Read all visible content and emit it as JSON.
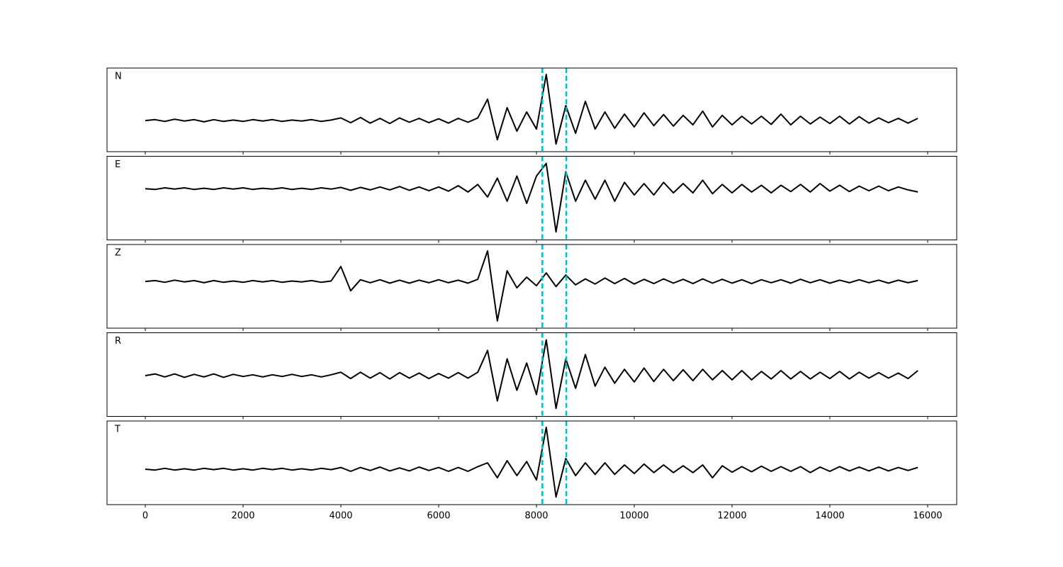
{
  "chart_data": [
    {
      "type": "line",
      "label": "N",
      "color": "#000000",
      "vlines": [
        8120,
        8610
      ],
      "vline_color": "#00bfbf",
      "xlim": [
        -783,
        16594
      ],
      "ylim": [
        -0.73,
        1.23
      ],
      "xticks": [
        0,
        2000,
        4000,
        6000,
        8000,
        10000,
        12000,
        14000,
        16000
      ],
      "show_tick_labels": false,
      "x": [
        0,
        200,
        400,
        600,
        800,
        1000,
        1200,
        1400,
        1600,
        1800,
        2000,
        2200,
        2400,
        2600,
        2800,
        3000,
        3200,
        3400,
        3600,
        3800,
        4000,
        4200,
        4400,
        4600,
        4800,
        5000,
        5200,
        5400,
        5600,
        5800,
        6000,
        6200,
        6400,
        6600,
        6800,
        7000,
        7200,
        7400,
        7600,
        7800,
        8000,
        8200,
        8400,
        8600,
        8800,
        9000,
        9200,
        9400,
        9600,
        9800,
        10000,
        10200,
        10400,
        10600,
        10800,
        11000,
        11200,
        11400,
        11600,
        11800,
        12000,
        12200,
        12400,
        12600,
        12800,
        13000,
        13200,
        13400,
        13600,
        13800,
        14000,
        14200,
        14400,
        14600,
        14800,
        15000,
        15200,
        15400,
        15600,
        15800
      ],
      "values": [
        0,
        0.02,
        -0.02,
        0.03,
        -0.01,
        0.02,
        -0.03,
        0.02,
        -0.02,
        0.01,
        -0.02,
        0.02,
        -0.01,
        0.02,
        -0.02,
        0.01,
        -0.01,
        0.02,
        -0.02,
        0.01,
        0.06,
        -0.05,
        0.07,
        -0.06,
        0.05,
        -0.07,
        0.06,
        -0.04,
        0.05,
        -0.05,
        0.04,
        -0.06,
        0.05,
        -0.04,
        0.06,
        0.5,
        -0.45,
        0.3,
        -0.25,
        0.2,
        -0.2,
        1.08,
        -0.55,
        0.35,
        -0.3,
        0.45,
        -0.2,
        0.2,
        -0.18,
        0.15,
        -0.15,
        0.18,
        -0.12,
        0.14,
        -0.13,
        0.12,
        -0.1,
        0.22,
        -0.15,
        0.12,
        -0.1,
        0.1,
        -0.08,
        0.1,
        -0.09,
        0.15,
        -0.1,
        0.1,
        -0.08,
        0.08,
        -0.07,
        0.1,
        -0.08,
        0.09,
        -0.06,
        0.06,
        -0.05,
        0.05,
        -0.06,
        0.05
      ]
    },
    {
      "type": "line",
      "label": "E",
      "color": "#000000",
      "vlines": [
        8120,
        8610
      ],
      "vline_color": "#00bfbf",
      "xlim": [
        -783,
        16594
      ],
      "ylim": [
        -1.22,
        0.77
      ],
      "xticks": [
        0,
        2000,
        4000,
        6000,
        8000,
        10000,
        12000,
        14000,
        16000
      ],
      "show_tick_labels": false,
      "x": [
        0,
        200,
        400,
        600,
        800,
        1000,
        1200,
        1400,
        1600,
        1800,
        2000,
        2200,
        2400,
        2600,
        2800,
        3000,
        3200,
        3400,
        3600,
        3800,
        4000,
        4200,
        4400,
        4600,
        4800,
        5000,
        5200,
        5400,
        5600,
        5800,
        6000,
        6200,
        6400,
        6600,
        6800,
        7000,
        7200,
        7400,
        7600,
        7800,
        8000,
        8200,
        8400,
        8600,
        8800,
        9000,
        9200,
        9400,
        9600,
        9800,
        10000,
        10200,
        10400,
        10600,
        10800,
        11000,
        11200,
        11400,
        11600,
        11800,
        12000,
        12200,
        12400,
        12600,
        12800,
        13000,
        13200,
        13400,
        13600,
        13800,
        14000,
        14200,
        14400,
        14600,
        14800,
        15000,
        15200,
        15400,
        15600,
        15800
      ],
      "values": [
        0,
        -0.02,
        0.02,
        -0.01,
        0.02,
        -0.02,
        0.01,
        -0.02,
        0.02,
        -0.01,
        0.02,
        -0.02,
        0.01,
        -0.01,
        0.02,
        -0.02,
        0.01,
        -0.02,
        0.02,
        -0.01,
        0.03,
        -0.04,
        0.03,
        -0.03,
        0.04,
        -0.03,
        0.05,
        -0.04,
        0.04,
        -0.05,
        0.04,
        -0.06,
        0.07,
        -0.08,
        0.1,
        -0.2,
        0.25,
        -0.3,
        0.3,
        -0.35,
        0.3,
        0.6,
        -1.03,
        0.4,
        -0.3,
        0.2,
        -0.25,
        0.2,
        -0.3,
        0.15,
        -0.15,
        0.12,
        -0.15,
        0.15,
        -0.1,
        0.12,
        -0.1,
        0.2,
        -0.12,
        0.1,
        -0.1,
        0.1,
        -0.08,
        0.08,
        -0.1,
        0.08,
        -0.07,
        0.1,
        -0.08,
        0.12,
        -0.06,
        0.08,
        -0.07,
        0.06,
        -0.05,
        0.06,
        -0.05,
        0.04,
        -0.03,
        -0.08
      ]
    },
    {
      "type": "line",
      "label": "Z",
      "color": "#000000",
      "vlines": [
        8120,
        8610
      ],
      "vline_color": "#00bfbf",
      "xlim": [
        -783,
        16594
      ],
      "ylim": [
        -1.1,
        0.87
      ],
      "xticks": [
        0,
        2000,
        4000,
        6000,
        8000,
        10000,
        12000,
        14000,
        16000
      ],
      "show_tick_labels": false,
      "x": [
        0,
        200,
        400,
        600,
        800,
        1000,
        1200,
        1400,
        1600,
        1800,
        2000,
        2200,
        2400,
        2600,
        2800,
        3000,
        3200,
        3400,
        3600,
        3800,
        4000,
        4200,
        4400,
        4600,
        4800,
        5000,
        5200,
        5400,
        5600,
        5800,
        6000,
        6200,
        6400,
        6600,
        6800,
        7000,
        7200,
        7400,
        7600,
        7800,
        8000,
        8200,
        8400,
        8600,
        8800,
        9000,
        9200,
        9400,
        9600,
        9800,
        10000,
        10200,
        10400,
        10600,
        10800,
        11000,
        11200,
        11400,
        11600,
        11800,
        12000,
        12200,
        12400,
        12600,
        12800,
        13000,
        13200,
        13400,
        13600,
        13800,
        14000,
        14200,
        14400,
        14600,
        14800,
        15000,
        15200,
        15400,
        15600,
        15800
      ],
      "values": [
        0,
        0.02,
        -0.02,
        0.03,
        -0.01,
        0.02,
        -0.03,
        0.02,
        -0.02,
        0.01,
        -0.02,
        0.02,
        -0.01,
        0.02,
        -0.02,
        0.01,
        -0.01,
        0.02,
        -0.02,
        0.01,
        0.35,
        -0.22,
        0.04,
        -0.03,
        0.04,
        -0.04,
        0.03,
        -0.04,
        0.03,
        -0.03,
        0.04,
        -0.03,
        0.03,
        -0.04,
        0.05,
        0.72,
        -0.93,
        0.25,
        -0.15,
        0.1,
        -0.1,
        0.2,
        -0.12,
        0.15,
        -0.08,
        0.06,
        -0.06,
        0.08,
        -0.05,
        0.07,
        -0.06,
        0.05,
        -0.05,
        0.06,
        -0.04,
        0.05,
        -0.05,
        0.06,
        -0.04,
        0.05,
        -0.04,
        0.04,
        -0.05,
        0.04,
        -0.03,
        0.04,
        -0.04,
        0.05,
        -0.03,
        0.04,
        -0.04,
        0.03,
        -0.03,
        0.04,
        -0.03,
        0.03,
        -0.04,
        0.03,
        -0.03,
        0.02
      ]
    },
    {
      "type": "line",
      "label": "R",
      "color": "#000000",
      "vlines": [
        8120,
        8610
      ],
      "vline_color": "#00bfbf",
      "xlim": [
        -783,
        16594
      ],
      "ylim": [
        -0.97,
        1.02
      ],
      "xticks": [
        0,
        2000,
        4000,
        6000,
        8000,
        10000,
        12000,
        14000,
        16000
      ],
      "show_tick_labels": false,
      "x": [
        0,
        200,
        400,
        600,
        800,
        1000,
        1200,
        1400,
        1600,
        1800,
        2000,
        2200,
        2400,
        2600,
        2800,
        3000,
        3200,
        3400,
        3600,
        3800,
        4000,
        4200,
        4400,
        4600,
        4800,
        5000,
        5200,
        5400,
        5600,
        5800,
        6000,
        6200,
        6400,
        6600,
        6800,
        7000,
        7200,
        7400,
        7600,
        7800,
        8000,
        8200,
        8400,
        8600,
        8800,
        9000,
        9200,
        9400,
        9600,
        9800,
        10000,
        10200,
        10400,
        10600,
        10800,
        11000,
        11200,
        11400,
        11600,
        11800,
        12000,
        12200,
        12400,
        12600,
        12800,
        13000,
        13200,
        13400,
        13600,
        13800,
        14000,
        14200,
        14400,
        14600,
        14800,
        15000,
        15200,
        15400,
        15600,
        15800
      ],
      "values": [
        0,
        0.04,
        -0.03,
        0.04,
        -0.04,
        0.03,
        -0.03,
        0.04,
        -0.04,
        0.03,
        -0.02,
        0.02,
        -0.03,
        0.02,
        -0.02,
        0.03,
        -0.02,
        0.02,
        -0.03,
        0.02,
        0.08,
        -0.07,
        0.08,
        -0.06,
        0.07,
        -0.08,
        0.07,
        -0.06,
        0.06,
        -0.07,
        0.05,
        -0.06,
        0.07,
        -0.06,
        0.08,
        0.6,
        -0.6,
        0.4,
        -0.35,
        0.3,
        -0.45,
        0.85,
        -0.78,
        0.4,
        -0.3,
        0.5,
        -0.25,
        0.2,
        -0.18,
        0.15,
        -0.15,
        0.18,
        -0.14,
        0.15,
        -0.12,
        0.14,
        -0.12,
        0.15,
        -0.1,
        0.12,
        -0.1,
        0.12,
        -0.1,
        0.1,
        -0.08,
        0.12,
        -0.08,
        0.1,
        -0.08,
        0.08,
        -0.07,
        0.1,
        -0.08,
        0.08,
        -0.06,
        0.07,
        -0.06,
        0.06,
        -0.07,
        0.12
      ]
    },
    {
      "type": "line",
      "label": "T",
      "color": "#000000",
      "vlines": [
        8120,
        8610
      ],
      "vline_color": "#00bfbf",
      "xlim": [
        -783,
        16594
      ],
      "ylim": [
        -0.83,
        1.13
      ],
      "xticks": [
        0,
        2000,
        4000,
        6000,
        8000,
        10000,
        12000,
        14000,
        16000
      ],
      "show_tick_labels": true,
      "x": [
        0,
        200,
        400,
        600,
        800,
        1000,
        1200,
        1400,
        1600,
        1800,
        2000,
        2200,
        2400,
        2600,
        2800,
        3000,
        3200,
        3400,
        3600,
        3800,
        4000,
        4200,
        4400,
        4600,
        4800,
        5000,
        5200,
        5400,
        5600,
        5800,
        6000,
        6200,
        6400,
        6600,
        6800,
        7000,
        7200,
        7400,
        7600,
        7800,
        8000,
        8200,
        8400,
        8600,
        8800,
        9000,
        9200,
        9400,
        9600,
        9800,
        10000,
        10200,
        10400,
        10600,
        10800,
        11000,
        11200,
        11400,
        11600,
        11800,
        12000,
        12200,
        12400,
        12600,
        12800,
        13000,
        13200,
        13400,
        13600,
        13800,
        14000,
        14200,
        14400,
        14600,
        14800,
        15000,
        15200,
        15400,
        15600,
        15800
      ],
      "values": [
        0,
        -0.02,
        0.02,
        -0.02,
        0.01,
        -0.02,
        0.02,
        -0.01,
        0.02,
        -0.02,
        0.01,
        -0.02,
        0.02,
        -0.01,
        0.02,
        -0.02,
        0.01,
        -0.02,
        0.02,
        -0.01,
        0.04,
        -0.05,
        0.04,
        -0.03,
        0.05,
        -0.04,
        0.03,
        -0.04,
        0.05,
        -0.03,
        0.04,
        -0.05,
        0.04,
        -0.05,
        0.06,
        0.15,
        -0.2,
        0.2,
        -0.15,
        0.18,
        -0.25,
        0.98,
        -0.65,
        0.25,
        -0.15,
        0.15,
        -0.12,
        0.15,
        -0.12,
        0.1,
        -0.1,
        0.12,
        -0.08,
        0.1,
        -0.08,
        0.08,
        -0.08,
        0.1,
        -0.2,
        0.08,
        -0.07,
        0.06,
        -0.06,
        0.07,
        -0.05,
        0.06,
        -0.05,
        0.06,
        -0.08,
        0.05,
        -0.05,
        0.06,
        -0.04,
        0.05,
        -0.04,
        0.05,
        -0.04,
        0.04,
        -0.03,
        0.04
      ]
    }
  ]
}
